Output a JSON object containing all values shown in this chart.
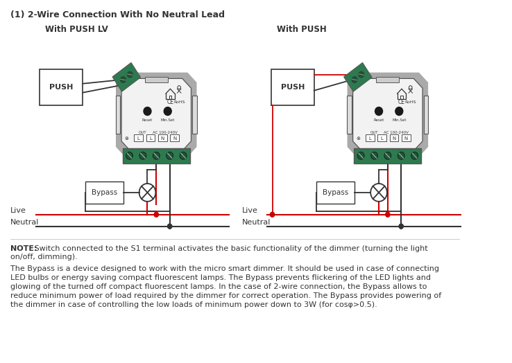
{
  "title": "(1) 2-Wire Connection With No Neutral Lead",
  "subtitle_left": "With PUSH LV",
  "subtitle_right": "With PUSH",
  "note_bold": "NOTE:",
  "note_line1": " Switch connected to the S1 terminal activates the basic functionality of the dimmer (turning the light",
  "note_line2": "on/off, dimming).",
  "bypass_lines": [
    "The Bypass is a device designed to work with the micro smart dimmer. It should be used in case of connecting",
    "LED bulbs or energy saving compact fluorescent lamps. The Bypass prevents flickering of the LED lights and",
    "glowing of the turned off compact fluorescent lamps. In the case of 2-wire connection, the Bypass allows to",
    "reduce minimum power of load required by the dimmer for correct operation. The Bypass provides powering of",
    "the dimmer in case of controlling the low loads of minimum power down to 3W (for cosφ>0.5)."
  ],
  "bg_color": "#ffffff",
  "lc": "#333333",
  "rc": "#cc0000",
  "gc": "#2d7a4f",
  "gc_dark": "#1a5535",
  "body_fill": "#f2f2f2",
  "body_edge": "#555555",
  "sidebar_fill": "#cccccc",
  "terminal_fill": "#e8e8e8"
}
